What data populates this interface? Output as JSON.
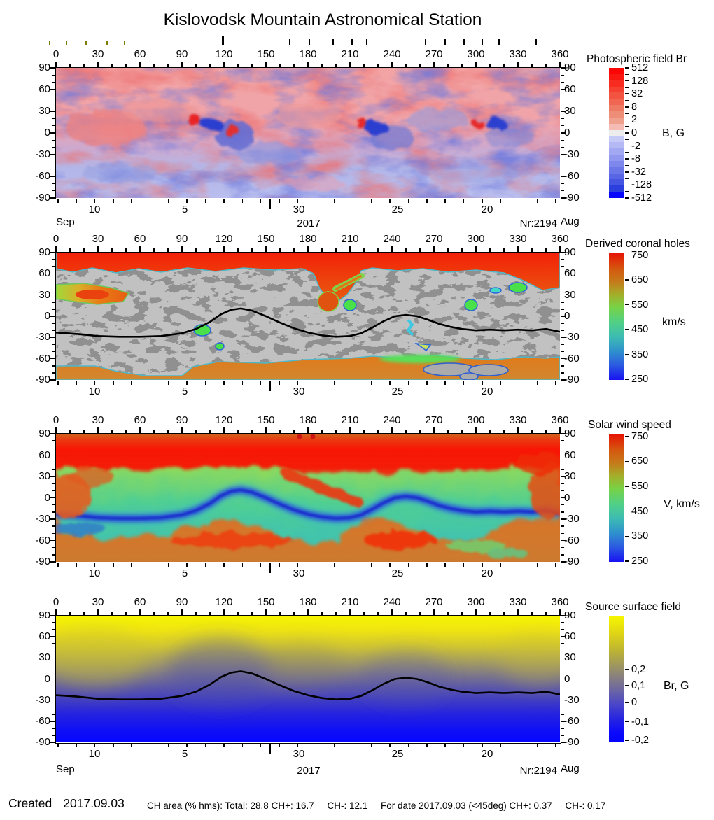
{
  "title": "Kislovodsk Mountain Astronomical Station",
  "axes": {
    "lon_labels": [
      "0",
      "30",
      "60",
      "90",
      "120",
      "150",
      "180",
      "210",
      "240",
      "270",
      "300",
      "330",
      "360"
    ],
    "lat_labels": [
      "90",
      "60",
      "30",
      "0",
      "-30",
      "-60",
      "-90"
    ],
    "date_labels": [
      {
        "text": "10",
        "x": 55
      },
      {
        "text": "5",
        "x": 184
      },
      {
        "text": "30",
        "x": 347
      },
      {
        "text": "25",
        "x": 488
      },
      {
        "text": "20",
        "x": 616
      }
    ],
    "month_left": "Sep",
    "year": "2017",
    "rotation_number": "Nr:2194",
    "month_right": "Aug"
  },
  "observation_ticks": {
    "olive_x": [
      70,
      94,
      122,
      152,
      177
    ],
    "black_x": [
      413,
      441,
      475,
      502,
      523,
      607,
      635,
      662,
      688,
      712,
      765
    ],
    "tall_x": 317
  },
  "panels": [
    {
      "title": "Photospheric field Br",
      "unit": "B, G",
      "colorbar": {
        "labels": [
          "512",
          "128",
          "32",
          "8",
          "2",
          "0",
          "-2",
          "-8",
          "-32",
          "-128",
          "-512"
        ],
        "colors": [
          "#fb0505",
          "#f91711",
          "#f72b20",
          "#f53f30",
          "#f35341",
          "#f16652",
          "#ef7a64",
          "#ee8d78",
          "#f0a18e",
          "#f4bcb4",
          "#ededed",
          "#c6caf7",
          "#b4b9f5",
          "#a2a8f2",
          "#9098ef",
          "#7e87ec",
          "#6b76e9",
          "#5866e6",
          "#4455e2",
          "#2b3ede",
          "#0707fb"
        ]
      }
    },
    {
      "title": "Derived coronal holes",
      "unit": "km/s",
      "colorbar": {
        "labels": [
          "750",
          "650",
          "550",
          "450",
          "350",
          "250"
        ]
      }
    },
    {
      "title": "Solar wind speed",
      "unit": "V, km/s",
      "colorbar": {
        "labels": [
          "750",
          "650",
          "550",
          "450",
          "350",
          "250"
        ]
      }
    },
    {
      "title": "Source surface field",
      "unit": "Br, G",
      "colorbar": {
        "labels": [
          "0,2",
          "0,1",
          "0",
          "-0,1",
          "-0,2"
        ]
      }
    }
  ],
  "footer": {
    "created_label": "Created",
    "created_date": "2017.09.03",
    "stats": [
      "CH area (% hms): Total: 28.8 CH+: 16.7",
      "CH-: 12.1",
      "For date 2017.09.03 (<45deg) CH+: 0.37",
      "CH-: 0.17"
    ]
  },
  "chart_data": [
    {
      "type": "heatmap",
      "title": "Photospheric field Br",
      "x_range": [
        0,
        360
      ],
      "x_ticks": [
        0,
        30,
        60,
        90,
        120,
        150,
        180,
        210,
        240,
        270,
        300,
        330,
        360
      ],
      "y_range": [
        -90,
        90
      ],
      "y_ticks": [
        90,
        60,
        30,
        0,
        -30,
        -60,
        -90
      ],
      "date_axis": {
        "labels": [
          "10",
          "5",
          "30",
          "25",
          "20"
        ],
        "month_start": "Sep",
        "month_end": "Aug",
        "year": "2017",
        "carrington_rotation": "Nr:2194"
      },
      "colorbar_unit": "B, G",
      "colorbar_ticks": [
        512,
        128,
        32,
        8,
        2,
        0,
        -2,
        -8,
        -32,
        -128,
        -512
      ],
      "palette": "red positive to white zero to blue negative, symmetric log scale",
      "features": "mottled mixed-polarity field; bipolar active regions near lon 100-130, 215-250 and 295-320 at lat 5-25; north hemisphere mostly positive (red), south mostly negative (blue)"
    },
    {
      "type": "heatmap",
      "title": "Derived coronal holes",
      "x_range": [
        0,
        360
      ],
      "x_ticks": [
        0,
        30,
        60,
        90,
        120,
        150,
        180,
        210,
        240,
        270,
        300,
        330,
        360
      ],
      "y_range": [
        -90,
        90
      ],
      "y_ticks": [
        90,
        60,
        30,
        0,
        -30,
        -60,
        -90
      ],
      "date_axis": {
        "labels": [
          "10",
          "5",
          "30",
          "25",
          "20"
        ]
      },
      "colorbar_unit": "km/s",
      "colorbar_ticks": [
        750,
        650,
        550,
        450,
        350,
        250
      ],
      "palette": "rainbow wind-speed scale inside coronal holes; two-tone gray outside holes",
      "features": "polar coronal holes above lat +60 and below -65 (red/orange, fast wind); equatorward extension near lon 175-200; small low-latitude holes (green/cyan) near lon 100,210,250,290,330",
      "neutral_line_lon_lat": [
        [
          0,
          -23
        ],
        [
          15,
          -25
        ],
        [
          30,
          -28
        ],
        [
          45,
          -29
        ],
        [
          60,
          -29
        ],
        [
          75,
          -28
        ],
        [
          90,
          -24
        ],
        [
          100,
          -18
        ],
        [
          110,
          -8
        ],
        [
          118,
          3
        ],
        [
          125,
          9
        ],
        [
          132,
          11
        ],
        [
          140,
          8
        ],
        [
          150,
          0
        ],
        [
          160,
          -9
        ],
        [
          170,
          -17
        ],
        [
          180,
          -23
        ],
        [
          190,
          -27
        ],
        [
          200,
          -29
        ],
        [
          210,
          -28
        ],
        [
          218,
          -24
        ],
        [
          226,
          -16
        ],
        [
          234,
          -7
        ],
        [
          242,
          0
        ],
        [
          250,
          2
        ],
        [
          258,
          0
        ],
        [
          266,
          -5
        ],
        [
          274,
          -11
        ],
        [
          282,
          -15
        ],
        [
          290,
          -18
        ],
        [
          300,
          -20
        ],
        [
          310,
          -19
        ],
        [
          320,
          -20
        ],
        [
          330,
          -19
        ],
        [
          340,
          -20
        ],
        [
          350,
          -18
        ],
        [
          360,
          -22
        ]
      ]
    },
    {
      "type": "heatmap",
      "title": "Solar wind speed",
      "x_range": [
        0,
        360
      ],
      "x_ticks": [
        0,
        30,
        60,
        90,
        120,
        150,
        180,
        210,
        240,
        270,
        300,
        330,
        360
      ],
      "y_range": [
        -90,
        90
      ],
      "y_ticks": [
        90,
        60,
        30,
        0,
        -30,
        -60,
        -90
      ],
      "date_axis": {
        "labels": [
          "10",
          "5",
          "30",
          "25",
          "20"
        ]
      },
      "colorbar_unit": "V, km/s",
      "colorbar_ticks": [
        750,
        650,
        550,
        450,
        350,
        250
      ],
      "palette": "rainbow: red/orange fast wind at poles, green-cyan-blue slow wind band along current sheet",
      "features": "fast wind (650-750 km/s) poleward of lat 40; slow wind (250-450 km/s) wavy band between lat +40 and -45 following the neutral line; fast streams intruding near lon 0-30, 165-215, 225-260 south, 340-360"
    },
    {
      "type": "heatmap",
      "title": "Source surface field",
      "x_range": [
        0,
        360
      ],
      "x_ticks": [
        0,
        30,
        60,
        90,
        120,
        150,
        180,
        210,
        240,
        270,
        300,
        330,
        360
      ],
      "y_range": [
        -90,
        90
      ],
      "y_ticks": [
        90,
        60,
        30,
        0,
        -30,
        -60,
        -90
      ],
      "date_axis": {
        "labels": [
          "10",
          "5",
          "30",
          "25",
          "20"
        ],
        "month_start": "Sep",
        "month_end": "Aug",
        "year": "2017",
        "carrington_rotation": "Nr:2194"
      },
      "colorbar_unit": "Br, G",
      "colorbar_ticks": [
        0.2,
        0.1,
        0,
        -0.1,
        -0.2
      ],
      "palette": "yellow positive to blue negative",
      "features": "smooth dipolar-like field: positive (yellow) north, negative (blue) south, separated by wavy neutral line with peaks near lon 125 (lat +11) and lon 250 (lat +2), troughs near lon 45 and 200 (lat -29)",
      "neutral_line_lon_lat": [
        [
          0,
          -23
        ],
        [
          15,
          -25
        ],
        [
          30,
          -28
        ],
        [
          45,
          -29
        ],
        [
          60,
          -29
        ],
        [
          75,
          -28
        ],
        [
          90,
          -24
        ],
        [
          100,
          -18
        ],
        [
          110,
          -8
        ],
        [
          118,
          3
        ],
        [
          125,
          9
        ],
        [
          132,
          11
        ],
        [
          140,
          8
        ],
        [
          150,
          0
        ],
        [
          160,
          -9
        ],
        [
          170,
          -17
        ],
        [
          180,
          -23
        ],
        [
          190,
          -27
        ],
        [
          200,
          -29
        ],
        [
          210,
          -28
        ],
        [
          218,
          -24
        ],
        [
          226,
          -16
        ],
        [
          234,
          -7
        ],
        [
          242,
          0
        ],
        [
          250,
          2
        ],
        [
          258,
          0
        ],
        [
          266,
          -5
        ],
        [
          274,
          -11
        ],
        [
          282,
          -15
        ],
        [
          290,
          -18
        ],
        [
          300,
          -20
        ],
        [
          310,
          -19
        ],
        [
          320,
          -20
        ],
        [
          330,
          -19
        ],
        [
          340,
          -20
        ],
        [
          350,
          -18
        ],
        [
          360,
          -22
        ]
      ]
    }
  ]
}
